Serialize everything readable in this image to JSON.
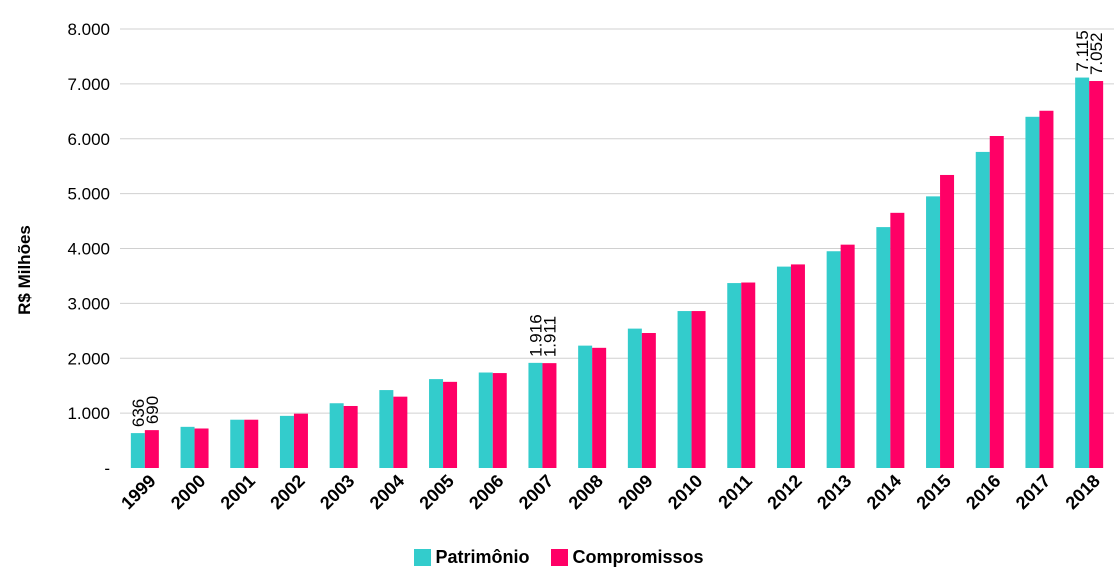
{
  "chart_data": {
    "type": "bar",
    "ylabel": "R$ Milhões",
    "xlabel": "",
    "title": "",
    "ylim": [
      0,
      8000
    ],
    "yticks": [
      {
        "value": 0,
        "label": "-"
      },
      {
        "value": 1000,
        "label": "1.000"
      },
      {
        "value": 2000,
        "label": "2.000"
      },
      {
        "value": 3000,
        "label": "3.000"
      },
      {
        "value": 4000,
        "label": "4.000"
      },
      {
        "value": 5000,
        "label": "5.000"
      },
      {
        "value": 6000,
        "label": "6.000"
      },
      {
        "value": 7000,
        "label": "7.000"
      },
      {
        "value": 8000,
        "label": "8.000"
      }
    ],
    "grid": true,
    "legend_position": "bottom",
    "categories": [
      "1999",
      "2000",
      "2001",
      "2002",
      "2003",
      "2004",
      "2005",
      "2006",
      "2007",
      "2008",
      "2009",
      "2010",
      "2011",
      "2012",
      "2013",
      "2014",
      "2015",
      "2016",
      "2017",
      "2018"
    ],
    "series": [
      {
        "name": "Patrimônio",
        "color": "#33CCCC",
        "values": [
          636,
          750,
          880,
          950,
          1180,
          1420,
          1620,
          1740,
          1916,
          2230,
          2540,
          2860,
          3370,
          3670,
          3950,
          4390,
          4950,
          5760,
          6400,
          7115
        ],
        "data_labels": {
          "0": "636",
          "8": "1.916",
          "19": "7.115"
        }
      },
      {
        "name": "Compromissos",
        "color": "#FF0066",
        "values": [
          690,
          720,
          880,
          990,
          1130,
          1300,
          1570,
          1730,
          1911,
          2190,
          2460,
          2860,
          3380,
          3710,
          4070,
          4650,
          5340,
          6050,
          6510,
          7052
        ],
        "data_labels": {
          "0": "690",
          "8": "1.911",
          "19": "7.052"
        }
      }
    ]
  }
}
